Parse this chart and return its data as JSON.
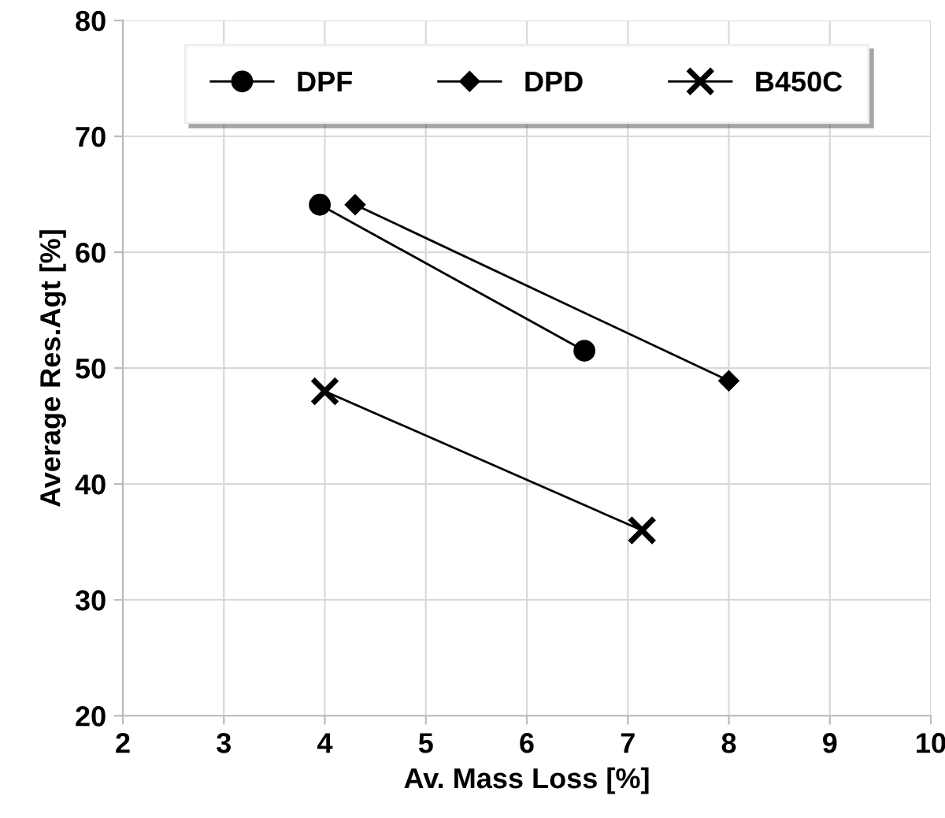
{
  "chart_data": {
    "type": "line",
    "xlabel": "Av. Mass Loss [%]",
    "ylabel": "Average Res.Agt [%]",
    "xlim": [
      2,
      10
    ],
    "xticks": [
      2,
      3,
      4,
      5,
      6,
      7,
      8,
      9,
      10
    ],
    "ylim": [
      20,
      80
    ],
    "yticks": [
      20,
      30,
      40,
      50,
      60,
      70,
      80
    ],
    "grid": true,
    "legend": "top",
    "line_style": "solid",
    "series": [
      {
        "name": "DPF",
        "color": "#000000",
        "marker": "circle",
        "x": [
          3.95,
          6.57
        ],
        "values": [
          64.1,
          51.5
        ]
      },
      {
        "name": "DPD",
        "color": "#000000",
        "marker": "diamond",
        "x": [
          4.3,
          8.0
        ],
        "values": [
          64.1,
          48.9
        ]
      },
      {
        "name": "B450C",
        "color": "#000000",
        "marker": "cross",
        "x": [
          4.0,
          7.14
        ],
        "values": [
          48.0,
          36.0
        ]
      }
    ]
  }
}
